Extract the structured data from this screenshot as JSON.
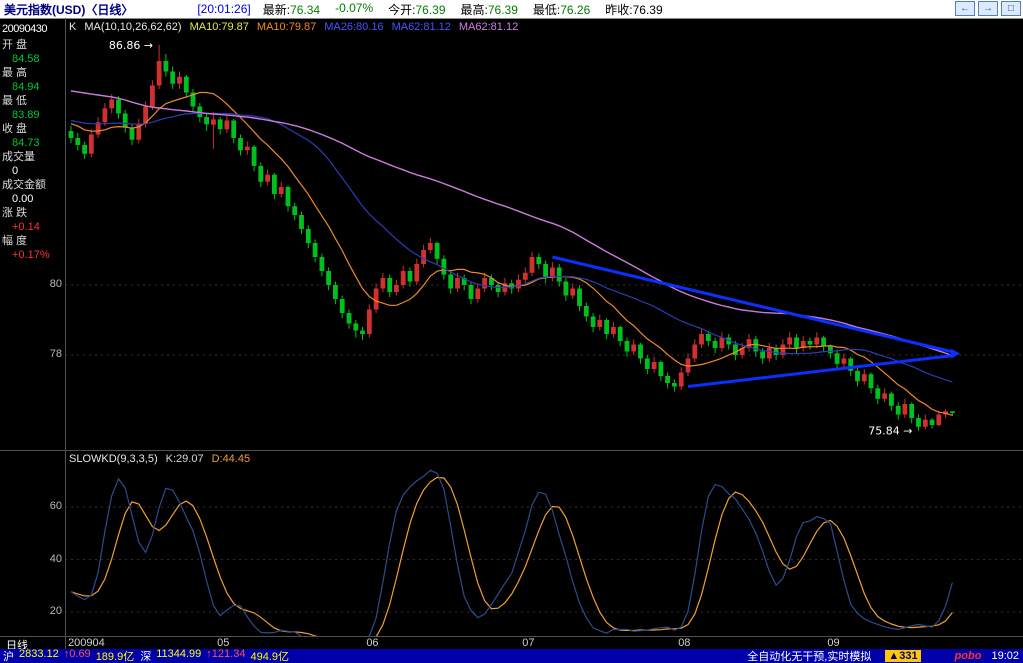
{
  "topbar": {
    "title": "美元指数(USD)〈日线〉",
    "time": "[20:01:26]",
    "quote_fields": [
      {
        "label": "最新:",
        "value": "76.34",
        "color": "#008000"
      },
      {
        "label": "",
        "value": "-0.07%",
        "color": "#008000"
      },
      {
        "label": "今开:",
        "value": "76.39",
        "color": "#008000"
      },
      {
        "label": "最高:",
        "value": "76.39",
        "color": "#008000"
      },
      {
        "label": "最低:",
        "value": "76.26",
        "color": "#008000"
      },
      {
        "label": "昨收:",
        "value": "76.39",
        "color": "#000000"
      }
    ],
    "window_buttons": [
      {
        "glyph": "←",
        "name": "scroll-left-button"
      },
      {
        "glyph": "→",
        "name": "scroll-right-button"
      },
      {
        "glyph": "□",
        "name": "popout-button"
      }
    ]
  },
  "sidebar": {
    "date": "20090430",
    "rows": [
      {
        "label": "开 盘",
        "value": "84.58",
        "color": "#00c832"
      },
      {
        "label": "最 高",
        "value": "84.94",
        "color": "#00c832"
      },
      {
        "label": "最 低",
        "value": "83.89",
        "color": "#00c832"
      },
      {
        "label": "收 盘",
        "value": "84.73",
        "color": "#00c832"
      },
      {
        "label": "成交量",
        "value": "0",
        "color": "#ffffff"
      },
      {
        "label": "成交金额",
        "value": "0.00",
        "color": "#ffffff"
      },
      {
        "label": "涨 跌",
        "value": "+0.14",
        "color": "#ff3232"
      },
      {
        "label": "幅 度",
        "value": "+0.17%",
        "color": "#ff3232"
      }
    ]
  },
  "main_chart_header": {
    "k_label": "K",
    "ma_param_label": "MA(10,10,26,62,62)",
    "ma_values": [
      {
        "text": "MA10:79.87",
        "color": "#e8e840"
      },
      {
        "text": "MA10:79.87",
        "color": "#f08828"
      },
      {
        "text": "MA26:80.16",
        "color": "#4455ff"
      },
      {
        "text": "MA62:81.12",
        "color": "#4455ff"
      },
      {
        "text": "MA62:81.12",
        "color": "#d080e8"
      }
    ]
  },
  "kd_header": {
    "name": "SLOWKD(9,3,3,5)",
    "k_text": "K:29.07",
    "k_color": "#d8d8d8",
    "d_text": "D:44.45",
    "d_color": "#f0a030"
  },
  "axis": {
    "row_label": "日线",
    "price_ticks": [
      {
        "value": 80,
        "label": "80"
      },
      {
        "value": 78,
        "label": "78"
      }
    ],
    "kd_ticks": [
      {
        "value": 60,
        "label": "60"
      },
      {
        "value": 40,
        "label": "40"
      },
      {
        "value": 20,
        "label": "20"
      }
    ],
    "months": [
      {
        "label": "200904",
        "index": 0
      },
      {
        "label": "05",
        "index": 22
      },
      {
        "label": "06",
        "index": 44
      },
      {
        "label": "07",
        "index": 67
      },
      {
        "label": "08",
        "index": 90
      },
      {
        "label": "09",
        "index": 112
      }
    ]
  },
  "statusbar": {
    "markets": [
      {
        "label": "沪",
        "value": "2833.12",
        "change": "↑0.69",
        "amount": "189.9亿"
      },
      {
        "label": "深",
        "value": "11344.99",
        "change": "↑121.34",
        "amount": "494.9亿"
      }
    ],
    "ticker": "全自动化无干预,实时模拟",
    "badge": "▲331",
    "logo": "pobo",
    "time": "19:02",
    "colors": {
      "value": "#ffff00",
      "change": "#ff5050",
      "amount": "#ffff00",
      "label": "#ffffff"
    }
  },
  "chart_data": [
    {
      "type": "candlestick",
      "title": "美元指数(USD) 日线",
      "ylim": [
        75.3,
        87.6
      ],
      "y_ticks": [
        80,
        78
      ],
      "grid_levels": [
        80,
        78
      ],
      "high_annotation": 86.86,
      "low_annotation": 75.84,
      "colors": {
        "up": "#d03030",
        "down": "#00c020",
        "trendline": "#0a30ff"
      },
      "ma_periods": [
        {
          "period": 10,
          "color": "#f08828",
          "width": 1.2
        },
        {
          "period": 26,
          "color": "#2c3cb4",
          "width": 1.2
        },
        {
          "period": 62,
          "color": "#cc7ae0",
          "width": 1.4
        }
      ],
      "ma_seed_closes": [
        85.5,
        85.8,
        86.1,
        86.4,
        86.7,
        87.0,
        87.3,
        87.6,
        87.9,
        88.1,
        88.2,
        88.0,
        87.8,
        87.6,
        87.3,
        87.0,
        86.8,
        86.5,
        86.2,
        86.0,
        85.8,
        85.6,
        85.5,
        85.3,
        85.2,
        85.0,
        85.1,
        84.9,
        85.0,
        84.8,
        84.9,
        84.7,
        84.8,
        84.9,
        85.0,
        85.1,
        84.9,
        84.8,
        84.7,
        84.8,
        84.9,
        85.0,
        84.8,
        84.7,
        84.6,
        84.7,
        84.8,
        84.6,
        84.7,
        84.8,
        84.7,
        84.6,
        84.7,
        84.8,
        84.7,
        84.6,
        84.7,
        84.6,
        84.7,
        84.6,
        84.5
      ],
      "candles": [
        [
          84.4,
          84.55,
          84.05,
          84.2
        ],
        [
          84.2,
          84.35,
          83.85,
          84.0
        ],
        [
          84.0,
          84.1,
          83.6,
          83.75
        ],
        [
          83.75,
          84.45,
          83.65,
          84.3
        ],
        [
          84.3,
          84.8,
          84.2,
          84.65
        ],
        [
          84.65,
          85.2,
          84.55,
          85.05
        ],
        [
          85.05,
          85.45,
          84.9,
          85.3
        ],
        [
          85.3,
          85.4,
          84.75,
          84.9
        ],
        [
          84.9,
          85.0,
          84.35,
          84.5
        ],
        [
          84.5,
          84.6,
          84.0,
          84.15
        ],
        [
          84.15,
          84.75,
          84.05,
          84.6
        ],
        [
          84.6,
          85.25,
          84.5,
          85.1
        ],
        [
          85.1,
          85.85,
          85.0,
          85.7
        ],
        [
          85.7,
          86.86,
          85.6,
          86.4
        ],
        [
          86.4,
          86.6,
          85.95,
          86.1
        ],
        [
          86.1,
          86.25,
          85.6,
          85.75
        ],
        [
          85.75,
          86.1,
          85.6,
          85.95
        ],
        [
          85.95,
          86.0,
          85.35,
          85.5
        ],
        [
          85.5,
          85.6,
          84.95,
          85.1
        ],
        [
          85.1,
          85.2,
          84.65,
          84.8
        ],
        [
          84.8,
          84.9,
          84.4,
          84.59
        ],
        [
          84.58,
          84.94,
          83.89,
          84.73
        ],
        [
          84.73,
          84.8,
          84.3,
          84.45
        ],
        [
          84.45,
          84.85,
          84.35,
          84.7
        ],
        [
          84.7,
          84.75,
          84.05,
          84.2
        ],
        [
          84.2,
          84.3,
          83.7,
          83.85
        ],
        [
          83.85,
          84.1,
          83.72,
          83.95
        ],
        [
          83.95,
          84.0,
          83.25,
          83.4
        ],
        [
          83.4,
          83.5,
          82.8,
          82.95
        ],
        [
          82.95,
          83.3,
          82.85,
          83.15
        ],
        [
          83.15,
          83.2,
          82.45,
          82.6
        ],
        [
          82.6,
          82.95,
          82.5,
          82.8
        ],
        [
          82.8,
          82.85,
          82.1,
          82.25
        ],
        [
          82.25,
          82.35,
          81.85,
          82.0
        ],
        [
          82.0,
          82.1,
          81.45,
          81.6
        ],
        [
          81.6,
          81.7,
          81.05,
          81.2
        ],
        [
          81.2,
          81.3,
          80.65,
          80.8
        ],
        [
          80.8,
          80.9,
          80.25,
          80.4
        ],
        [
          80.4,
          80.5,
          79.85,
          80.0
        ],
        [
          80.0,
          80.1,
          79.45,
          79.6
        ],
        [
          79.6,
          79.7,
          79.05,
          79.2
        ],
        [
          79.2,
          79.3,
          78.75,
          78.9
        ],
        [
          78.9,
          79.0,
          78.5,
          78.7
        ],
        [
          78.7,
          78.8,
          78.42,
          78.6
        ],
        [
          78.6,
          79.45,
          78.5,
          79.3
        ],
        [
          79.3,
          80.05,
          79.2,
          79.9
        ],
        [
          79.9,
          80.35,
          79.8,
          80.2
        ],
        [
          80.2,
          80.3,
          79.65,
          79.8
        ],
        [
          79.8,
          80.15,
          79.7,
          80.0
        ],
        [
          80.0,
          80.55,
          79.9,
          80.4
        ],
        [
          80.4,
          80.5,
          79.95,
          80.1
        ],
        [
          80.1,
          80.75,
          80.0,
          80.6
        ],
        [
          80.6,
          81.15,
          80.5,
          81.0
        ],
        [
          81.0,
          81.35,
          80.9,
          81.2
        ],
        [
          81.2,
          81.25,
          80.6,
          80.75
        ],
        [
          80.75,
          80.85,
          80.15,
          80.3
        ],
        [
          80.3,
          80.4,
          79.75,
          79.9
        ],
        [
          79.9,
          80.35,
          79.8,
          80.2
        ],
        [
          80.2,
          80.3,
          79.85,
          80.0
        ],
        [
          80.0,
          80.1,
          79.45,
          79.6
        ],
        [
          79.6,
          80.05,
          79.5,
          79.9
        ],
        [
          79.9,
          80.35,
          79.8,
          80.2
        ],
        [
          80.2,
          80.3,
          79.85,
          80.0
        ],
        [
          80.0,
          80.1,
          79.65,
          79.8
        ],
        [
          79.8,
          80.2,
          79.7,
          80.05
        ],
        [
          80.05,
          80.15,
          79.75,
          79.9
        ],
        [
          79.9,
          80.3,
          79.8,
          80.15
        ],
        [
          80.15,
          80.5,
          80.05,
          80.35
        ],
        [
          80.35,
          80.95,
          80.25,
          80.8
        ],
        [
          80.8,
          80.9,
          80.45,
          80.6
        ],
        [
          80.6,
          80.7,
          80.05,
          80.2
        ],
        [
          80.2,
          80.65,
          80.1,
          80.5
        ],
        [
          80.5,
          80.6,
          79.95,
          80.1
        ],
        [
          80.1,
          80.2,
          79.55,
          79.7
        ],
        [
          79.7,
          80.05,
          79.6,
          79.9
        ],
        [
          79.9,
          80.0,
          79.25,
          79.4
        ],
        [
          79.4,
          79.5,
          78.95,
          79.1
        ],
        [
          79.1,
          79.2,
          78.65,
          78.8
        ],
        [
          78.8,
          79.15,
          78.7,
          79.0
        ],
        [
          79.0,
          79.05,
          78.45,
          78.6
        ],
        [
          78.6,
          78.95,
          78.5,
          78.8
        ],
        [
          78.8,
          78.85,
          78.25,
          78.4
        ],
        [
          78.4,
          78.5,
          77.95,
          78.1
        ],
        [
          78.1,
          78.45,
          78.0,
          78.3
        ],
        [
          78.3,
          78.35,
          77.75,
          77.9
        ],
        [
          77.9,
          78.0,
          77.45,
          77.6
        ],
        [
          77.6,
          77.95,
          77.5,
          77.8
        ],
        [
          77.8,
          77.85,
          77.25,
          77.4
        ],
        [
          77.4,
          77.5,
          77.05,
          77.2
        ],
        [
          77.2,
          77.3,
          76.95,
          77.1
        ],
        [
          77.1,
          77.65,
          77.0,
          77.5
        ],
        [
          77.5,
          78.05,
          77.4,
          77.9
        ],
        [
          77.9,
          78.45,
          77.8,
          78.3
        ],
        [
          78.3,
          78.75,
          78.2,
          78.6
        ],
        [
          78.6,
          78.7,
          78.25,
          78.4
        ],
        [
          78.4,
          78.5,
          78.05,
          78.2
        ],
        [
          78.2,
          78.65,
          78.1,
          78.5
        ],
        [
          78.5,
          78.6,
          78.15,
          78.3
        ],
        [
          78.3,
          78.4,
          77.85,
          78.0
        ],
        [
          78.0,
          78.35,
          77.9,
          78.2
        ],
        [
          78.2,
          78.6,
          78.1,
          78.45
        ],
        [
          78.45,
          78.55,
          77.95,
          78.1
        ],
        [
          78.1,
          78.2,
          77.75,
          77.9
        ],
        [
          77.9,
          78.35,
          77.8,
          78.2
        ],
        [
          78.2,
          78.3,
          77.85,
          78.0
        ],
        [
          78.0,
          78.45,
          77.9,
          78.3
        ],
        [
          78.3,
          78.65,
          78.2,
          78.5
        ],
        [
          78.5,
          78.6,
          78.05,
          78.2
        ],
        [
          78.2,
          78.55,
          78.1,
          78.4
        ],
        [
          78.4,
          78.5,
          78.15,
          78.3
        ],
        [
          78.3,
          78.65,
          78.2,
          78.5
        ],
        [
          78.5,
          78.55,
          78.1,
          78.25
        ],
        [
          78.25,
          78.3,
          77.9,
          78.05
        ],
        [
          78.05,
          78.15,
          77.6,
          77.75
        ],
        [
          77.75,
          78.05,
          77.65,
          77.9
        ],
        [
          77.9,
          77.95,
          77.4,
          77.55
        ],
        [
          77.55,
          77.65,
          77.1,
          77.25
        ],
        [
          77.25,
          77.6,
          77.15,
          77.45
        ],
        [
          77.45,
          77.5,
          76.9,
          77.05
        ],
        [
          77.05,
          77.15,
          76.6,
          76.75
        ],
        [
          76.75,
          77.05,
          76.65,
          76.9
        ],
        [
          76.9,
          76.95,
          76.4,
          76.55
        ],
        [
          76.55,
          76.65,
          76.15,
          76.3
        ],
        [
          76.3,
          76.75,
          76.2,
          76.6
        ],
        [
          76.6,
          76.65,
          76.05,
          76.2
        ],
        [
          76.2,
          76.3,
          75.84,
          75.95
        ],
        [
          75.95,
          76.3,
          75.88,
          76.15
        ],
        [
          76.15,
          76.2,
          75.9,
          76.0
        ],
        [
          76.0,
          76.4,
          75.95,
          76.3
        ],
        [
          76.3,
          76.45,
          76.2,
          76.39
        ],
        [
          76.39,
          76.39,
          76.26,
          76.34
        ]
      ],
      "trendlines": [
        {
          "i1": 71,
          "v1": 80.8,
          "i2": 129.8,
          "v2": 78.1
        },
        {
          "i1": 91,
          "v1": 77.1,
          "i2": 129.8,
          "v2": 77.98
        }
      ],
      "annotations": [
        {
          "text": "86.86",
          "index": 13,
          "value": 86.86
        },
        {
          "text": "75.84",
          "index": 125,
          "value": 75.84
        }
      ]
    },
    {
      "type": "line",
      "name": "SLOWKD(9,3,3,5)",
      "params": {
        "n": 9,
        "k_smooth": 3,
        "d_smooth": 3,
        "extra": 5
      },
      "derived_from": "stochastic KD computed from the candles series above",
      "series": [
        {
          "name": "K",
          "last_label": "K:29.07",
          "color": "#2c4c8c"
        },
        {
          "name": "D",
          "last_label": "D:44.45",
          "color": "#f0a030"
        }
      ],
      "ylim": [
        0,
        100
      ],
      "y_ticks": [
        60,
        40,
        20
      ],
      "display_range": [
        8,
        74
      ]
    }
  ]
}
